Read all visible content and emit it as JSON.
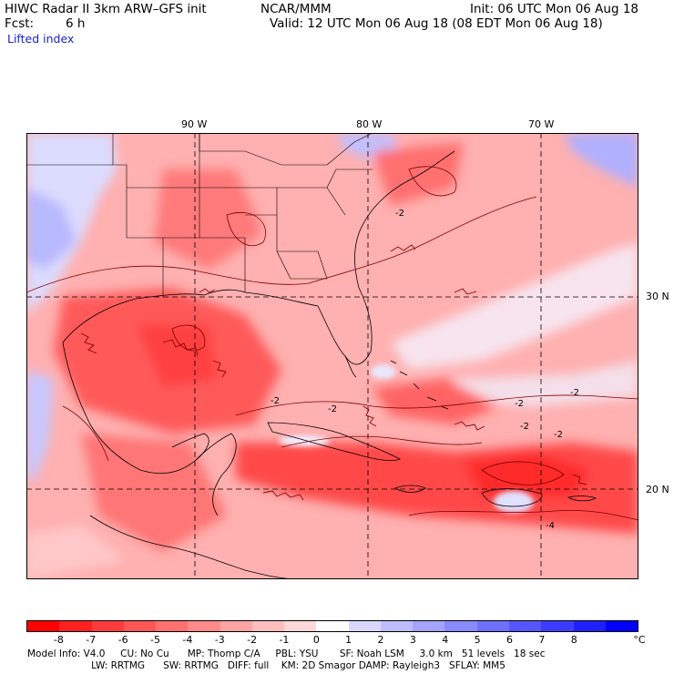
{
  "header": {
    "title": "HIWC Radar II 3km ARW–GFS init",
    "center": "NCAR/MMM",
    "init": "Init: 06 UTC Mon 06 Aug 18",
    "fcst_label": "Fcst:",
    "fcst_value": "6 h",
    "valid": "Valid: 12 UTC Mon 06 Aug 18 (08 EDT Mon 06 Aug 18)",
    "field": "Lifted index"
  },
  "map": {
    "lon_labels": [
      "90 W",
      "80 W",
      "70 W"
    ],
    "lat_labels": [
      "30 N",
      "20 N"
    ],
    "contour_labels": [
      "-2",
      "-2",
      "-2",
      "-2",
      "-2",
      "-2",
      "-2",
      "-4"
    ]
  },
  "colorbar": {
    "unit": "°C",
    "labels": [
      "-8",
      "-7",
      "-6",
      "-5",
      "-4",
      "-3",
      "-2",
      "-1",
      "0",
      "1",
      "2",
      "3",
      "4",
      "5",
      "6",
      "7",
      "8"
    ],
    "colors": [
      "#ff0000",
      "#ff2020",
      "#ff3c3c",
      "#ff5656",
      "#ff7070",
      "#ff8a8a",
      "#ffa4a4",
      "#ffbebe",
      "#ffd8d8",
      "#ffffff",
      "#d8d8ff",
      "#bebeff",
      "#a4a4ff",
      "#8a8aff",
      "#7070ff",
      "#5656ff",
      "#3c3cff",
      "#2020ff",
      "#0000ff"
    ]
  },
  "footer": {
    "line1": "Model Info: V4.0     CU: No Cu      MP: Thomp C/A     PBL: YSU       SF: Noah LSM     3.0 km   51 levels   18 sec",
    "line2": "                     LW: RRTMG      SW: RRTMG   DIFF: full    KM: 2D Smagor DAMP: Rayleigh3   SFLAY: MM5"
  }
}
